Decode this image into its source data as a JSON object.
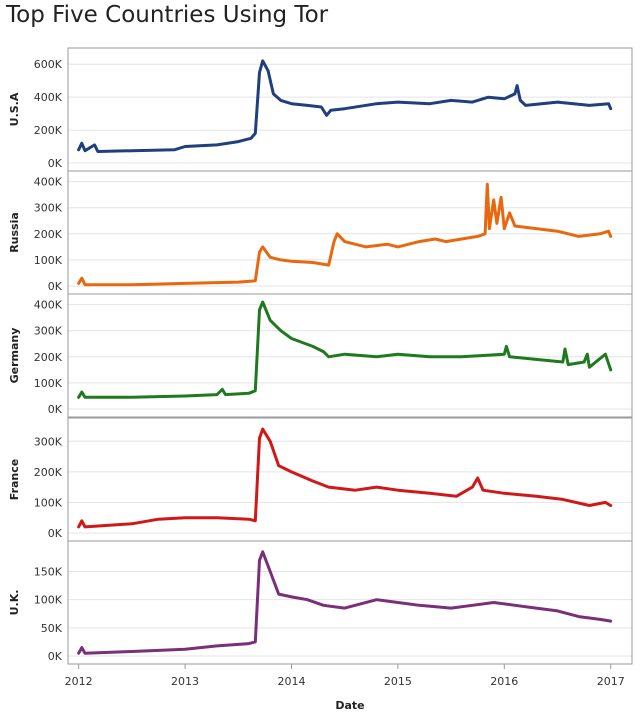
{
  "chart_data": {
    "type": "line",
    "title": "Top Five Countries Using Tor",
    "xlabel": "Date",
    "xlim": [
      2011.9,
      2017.2
    ],
    "x_ticks": [
      2012,
      2013,
      2014,
      2015,
      2016,
      2017
    ],
    "x_tick_labels": [
      "2012",
      "2013",
      "2014",
      "2015",
      "2016",
      "2017"
    ],
    "grid": true,
    "legend": "none",
    "panels": [
      {
        "name": "U.S.A",
        "color": "#1f3f7f",
        "ylim": [
          0,
          650000
        ],
        "y_ticks": [
          0,
          200000,
          400000,
          600000
        ],
        "y_tick_labels": [
          "0K",
          "200K",
          "400K",
          "600K"
        ],
        "points": [
          [
            2012.0,
            80000
          ],
          [
            2012.03,
            120000
          ],
          [
            2012.06,
            75000
          ],
          [
            2012.15,
            110000
          ],
          [
            2012.18,
            70000
          ],
          [
            2012.5,
            75000
          ],
          [
            2012.9,
            80000
          ],
          [
            2013.0,
            100000
          ],
          [
            2013.3,
            110000
          ],
          [
            2013.5,
            130000
          ],
          [
            2013.62,
            150000
          ],
          [
            2013.66,
            180000
          ],
          [
            2013.7,
            550000
          ],
          [
            2013.73,
            620000
          ],
          [
            2013.78,
            560000
          ],
          [
            2013.83,
            420000
          ],
          [
            2013.9,
            380000
          ],
          [
            2014.0,
            360000
          ],
          [
            2014.15,
            350000
          ],
          [
            2014.28,
            340000
          ],
          [
            2014.33,
            290000
          ],
          [
            2014.37,
            320000
          ],
          [
            2014.5,
            330000
          ],
          [
            2014.8,
            360000
          ],
          [
            2015.0,
            370000
          ],
          [
            2015.3,
            360000
          ],
          [
            2015.5,
            380000
          ],
          [
            2015.7,
            370000
          ],
          [
            2015.85,
            400000
          ],
          [
            2016.0,
            390000
          ],
          [
            2016.1,
            420000
          ],
          [
            2016.12,
            470000
          ],
          [
            2016.15,
            380000
          ],
          [
            2016.2,
            350000
          ],
          [
            2016.5,
            370000
          ],
          [
            2016.8,
            350000
          ],
          [
            2016.98,
            360000
          ],
          [
            2017.0,
            330000
          ]
        ]
      },
      {
        "name": "Russia",
        "color": "#e86810",
        "ylim": [
          0,
          410000
        ],
        "y_ticks": [
          0,
          100000,
          200000,
          300000,
          400000
        ],
        "y_tick_labels": [
          "0K",
          "100K",
          "200K",
          "300K",
          "400K"
        ],
        "points": [
          [
            2012.0,
            10000
          ],
          [
            2012.03,
            30000
          ],
          [
            2012.06,
            5000
          ],
          [
            2012.5,
            5000
          ],
          [
            2013.0,
            10000
          ],
          [
            2013.5,
            15000
          ],
          [
            2013.66,
            20000
          ],
          [
            2013.7,
            130000
          ],
          [
            2013.73,
            150000
          ],
          [
            2013.8,
            110000
          ],
          [
            2013.9,
            100000
          ],
          [
            2014.0,
            95000
          ],
          [
            2014.2,
            90000
          ],
          [
            2014.35,
            80000
          ],
          [
            2014.4,
            170000
          ],
          [
            2014.43,
            200000
          ],
          [
            2014.5,
            170000
          ],
          [
            2014.7,
            150000
          ],
          [
            2014.9,
            160000
          ],
          [
            2015.0,
            150000
          ],
          [
            2015.2,
            170000
          ],
          [
            2015.35,
            180000
          ],
          [
            2015.45,
            170000
          ],
          [
            2015.6,
            180000
          ],
          [
            2015.75,
            190000
          ],
          [
            2015.82,
            200000
          ],
          [
            2015.84,
            390000
          ],
          [
            2015.86,
            220000
          ],
          [
            2015.9,
            330000
          ],
          [
            2015.93,
            240000
          ],
          [
            2015.97,
            340000
          ],
          [
            2016.0,
            220000
          ],
          [
            2016.05,
            280000
          ],
          [
            2016.1,
            230000
          ],
          [
            2016.3,
            220000
          ],
          [
            2016.5,
            210000
          ],
          [
            2016.7,
            190000
          ],
          [
            2016.9,
            200000
          ],
          [
            2016.98,
            210000
          ],
          [
            2017.0,
            190000
          ]
        ]
      },
      {
        "name": "Germany",
        "color": "#1f7a1f",
        "ylim": [
          0,
          410000
        ],
        "y_ticks": [
          0,
          100000,
          200000,
          300000,
          400000
        ],
        "y_tick_labels": [
          "0K",
          "100K",
          "200K",
          "300K",
          "400K"
        ],
        "points": [
          [
            2012.0,
            45000
          ],
          [
            2012.03,
            65000
          ],
          [
            2012.06,
            45000
          ],
          [
            2012.5,
            45000
          ],
          [
            2013.0,
            50000
          ],
          [
            2013.3,
            55000
          ],
          [
            2013.35,
            75000
          ],
          [
            2013.38,
            55000
          ],
          [
            2013.6,
            60000
          ],
          [
            2013.66,
            70000
          ],
          [
            2013.7,
            380000
          ],
          [
            2013.73,
            410000
          ],
          [
            2013.8,
            340000
          ],
          [
            2013.9,
            300000
          ],
          [
            2014.0,
            270000
          ],
          [
            2014.2,
            240000
          ],
          [
            2014.3,
            220000
          ],
          [
            2014.35,
            200000
          ],
          [
            2014.5,
            210000
          ],
          [
            2014.8,
            200000
          ],
          [
            2015.0,
            210000
          ],
          [
            2015.3,
            200000
          ],
          [
            2015.6,
            200000
          ],
          [
            2015.8,
            205000
          ],
          [
            2016.0,
            210000
          ],
          [
            2016.02,
            240000
          ],
          [
            2016.05,
            200000
          ],
          [
            2016.3,
            190000
          ],
          [
            2016.55,
            180000
          ],
          [
            2016.57,
            230000
          ],
          [
            2016.6,
            170000
          ],
          [
            2016.75,
            180000
          ],
          [
            2016.78,
            210000
          ],
          [
            2016.8,
            160000
          ],
          [
            2016.95,
            210000
          ],
          [
            2017.0,
            150000
          ]
        ]
      },
      {
        "name": "France",
        "color": "#d01818",
        "ylim": [
          0,
          350000
        ],
        "y_ticks": [
          0,
          100000,
          200000,
          300000
        ],
        "y_tick_labels": [
          "0K",
          "100K",
          "200K",
          "300K"
        ],
        "points": [
          [
            2012.0,
            20000
          ],
          [
            2012.03,
            40000
          ],
          [
            2012.06,
            20000
          ],
          [
            2012.5,
            30000
          ],
          [
            2012.75,
            45000
          ],
          [
            2013.0,
            50000
          ],
          [
            2013.3,
            50000
          ],
          [
            2013.6,
            45000
          ],
          [
            2013.66,
            40000
          ],
          [
            2013.7,
            310000
          ],
          [
            2013.73,
            340000
          ],
          [
            2013.8,
            300000
          ],
          [
            2013.88,
            220000
          ],
          [
            2014.0,
            200000
          ],
          [
            2014.2,
            170000
          ],
          [
            2014.35,
            150000
          ],
          [
            2014.6,
            140000
          ],
          [
            2014.8,
            150000
          ],
          [
            2015.0,
            140000
          ],
          [
            2015.3,
            130000
          ],
          [
            2015.55,
            120000
          ],
          [
            2015.7,
            150000
          ],
          [
            2015.75,
            180000
          ],
          [
            2015.8,
            140000
          ],
          [
            2016.0,
            130000
          ],
          [
            2016.3,
            120000
          ],
          [
            2016.55,
            110000
          ],
          [
            2016.8,
            90000
          ],
          [
            2016.95,
            100000
          ],
          [
            2017.0,
            90000
          ]
        ]
      },
      {
        "name": "U.K.",
        "color": "#7a2f7a",
        "ylim": [
          0,
          190000
        ],
        "y_ticks": [
          0,
          50000,
          100000,
          150000
        ],
        "y_tick_labels": [
          "0K",
          "50K",
          "100K",
          "150K"
        ],
        "points": [
          [
            2012.0,
            5000
          ],
          [
            2012.03,
            15000
          ],
          [
            2012.06,
            5000
          ],
          [
            2012.5,
            8000
          ],
          [
            2013.0,
            12000
          ],
          [
            2013.3,
            18000
          ],
          [
            2013.6,
            22000
          ],
          [
            2013.66,
            25000
          ],
          [
            2013.7,
            170000
          ],
          [
            2013.73,
            185000
          ],
          [
            2013.8,
            150000
          ],
          [
            2013.88,
            110000
          ],
          [
            2014.0,
            105000
          ],
          [
            2014.15,
            100000
          ],
          [
            2014.3,
            90000
          ],
          [
            2014.5,
            85000
          ],
          [
            2014.8,
            100000
          ],
          [
            2015.0,
            95000
          ],
          [
            2015.2,
            90000
          ],
          [
            2015.5,
            85000
          ],
          [
            2015.7,
            90000
          ],
          [
            2015.9,
            95000
          ],
          [
            2016.1,
            90000
          ],
          [
            2016.3,
            85000
          ],
          [
            2016.5,
            80000
          ],
          [
            2016.7,
            70000
          ],
          [
            2016.9,
            65000
          ],
          [
            2017.0,
            62000
          ]
        ]
      }
    ]
  }
}
